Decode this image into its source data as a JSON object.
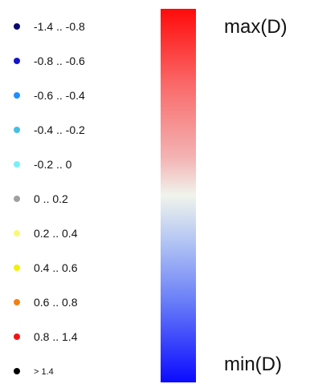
{
  "legend": {
    "items": [
      {
        "label": "-1.4 .. -0.8",
        "color": "#0a0a6e"
      },
      {
        "label": "-0.8 .. -0.6",
        "color": "#1414c8"
      },
      {
        "label": "-0.6 .. -0.4",
        "color": "#1e90ff"
      },
      {
        "label": "-0.4 .. -0.2",
        "color": "#46bee6"
      },
      {
        "label": "-0.2 .. 0",
        "color": "#78f0f8"
      },
      {
        "label": "0 .. 0.2",
        "color": "#a0a0a0"
      },
      {
        "label": "0.2 .. 0.4",
        "color": "#f8f878"
      },
      {
        "label": "0.4 .. 0.6",
        "color": "#f0f00a"
      },
      {
        "label": "0.6 .. 0.8",
        "color": "#f08214"
      },
      {
        "label": "0.8 .. 1.4",
        "color": "#f01414"
      },
      {
        "label": "> 1.4",
        "color": "#000000"
      }
    ]
  },
  "colorbar": {
    "max_label": "max(D)",
    "min_label": "min(D)",
    "top_color": "#ff0a0a",
    "middle_color": "#f0f4ec",
    "bottom_color": "#0b0bff"
  }
}
